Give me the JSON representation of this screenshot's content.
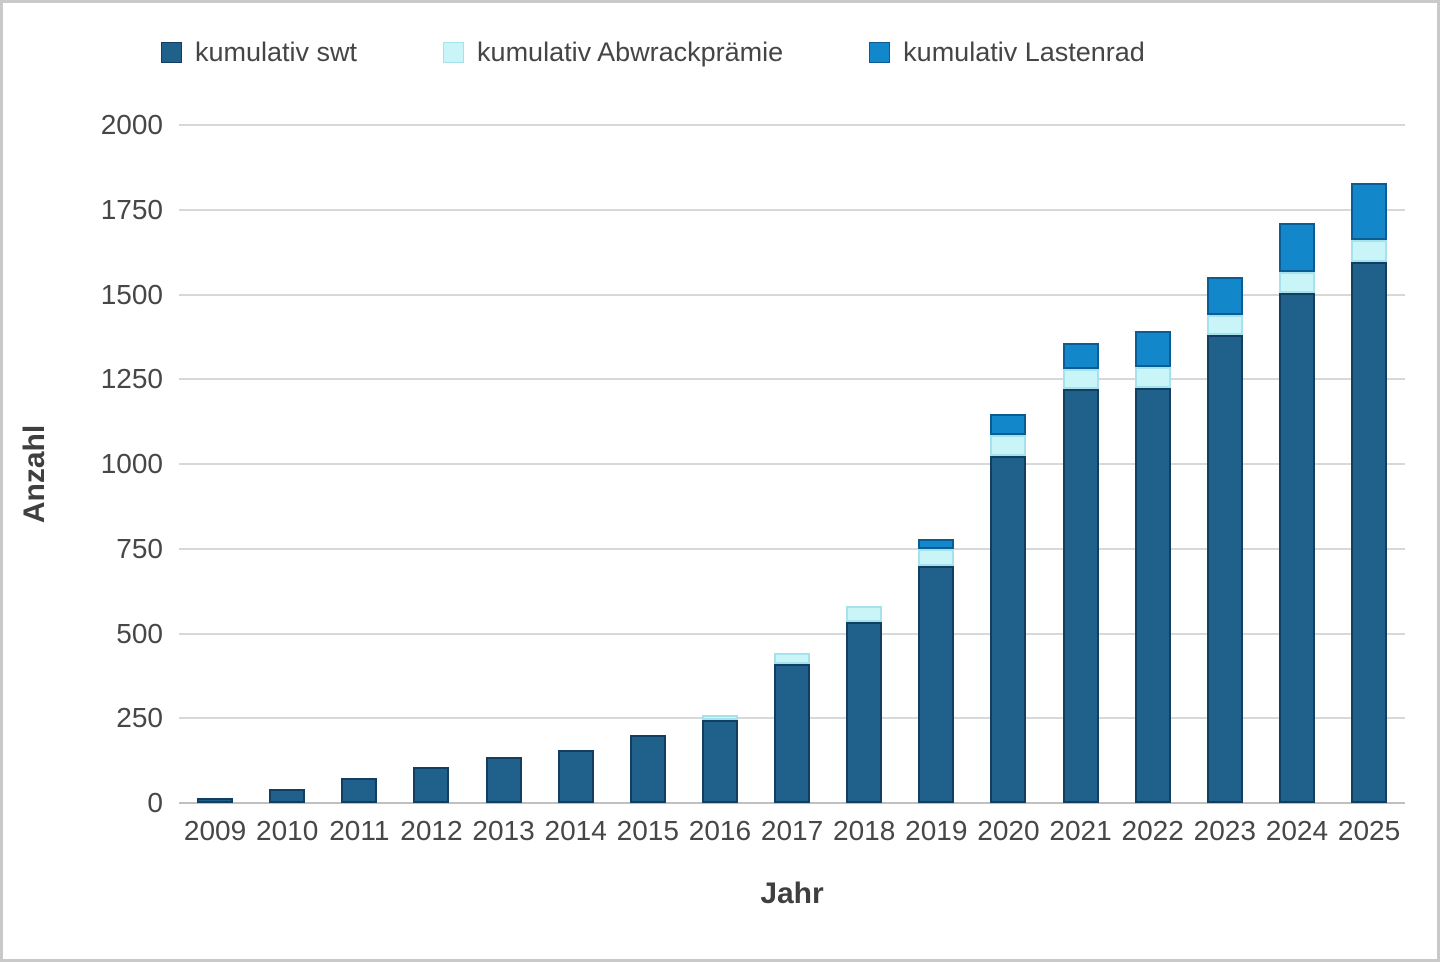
{
  "chart_data": {
    "type": "bar",
    "stacked": true,
    "title": "",
    "xlabel": "Jahr",
    "ylabel": "Anzahl",
    "ylim": [
      0,
      2000
    ],
    "yticks": [
      0,
      250,
      500,
      750,
      1000,
      1250,
      1500,
      1750,
      2000
    ],
    "categories": [
      "2009",
      "2010",
      "2011",
      "2012",
      "2013",
      "2014",
      "2015",
      "2016",
      "2017",
      "2018",
      "2019",
      "2020",
      "2021",
      "2022",
      "2023",
      "2024",
      "2025"
    ],
    "series": [
      {
        "name": "kumulativ swt",
        "color": "#20618C",
        "border_color": "#123F61",
        "values": [
          15,
          40,
          73,
          105,
          135,
          155,
          200,
          245,
          410,
          535,
          700,
          1025,
          1220,
          1225,
          1380,
          1505,
          1595
        ]
      },
      {
        "name": "kumulativ Abwrackprämie",
        "color": "#C9F4F8",
        "border_color": "#A5E2EC",
        "values": [
          0,
          0,
          0,
          0,
          0,
          0,
          0,
          15,
          33,
          47,
          50,
          60,
          60,
          60,
          60,
          62,
          65
        ]
      },
      {
        "name": "kumulativ Lastenrad",
        "color": "#1288CB",
        "border_color": "#0B5C95",
        "values": [
          0,
          0,
          0,
          0,
          0,
          0,
          0,
          0,
          0,
          0,
          30,
          63,
          78,
          108,
          112,
          145,
          168
        ]
      }
    ],
    "legend_position": "top",
    "grid": true,
    "style": {
      "grid_color": "#D8D8D8",
      "axis_line_color": "#C0C0C0",
      "text_color": "#474747",
      "background": "#FFFFFF",
      "frame_color": "#C9C9C9"
    }
  }
}
